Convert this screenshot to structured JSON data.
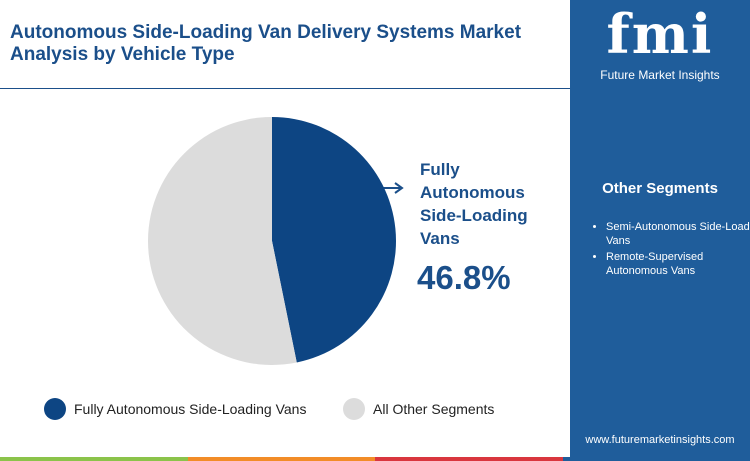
{
  "chart_data": {
    "type": "pie",
    "title": "Autonomous Side-Loading Van Delivery Systems Market Analysis by Vehicle Type",
    "categories": [
      "Fully Autonomous Side-Loading Vans",
      "All Other Segments"
    ],
    "values": [
      46.8,
      53.2
    ],
    "value_labels": [
      "46.8%",
      null
    ],
    "colors": [
      "#0d4583",
      "#dcdcdc"
    ],
    "highlight": 0
  },
  "sidebar": {
    "logo": "fmi",
    "brand": "Future Market Insights",
    "heading": "Other Segments",
    "items": [
      "Semi-Autonomous Side-Loading Vans",
      "Remote-Supervised Autonomous Vans"
    ],
    "url": "www.futuremarketinsights.com"
  }
}
